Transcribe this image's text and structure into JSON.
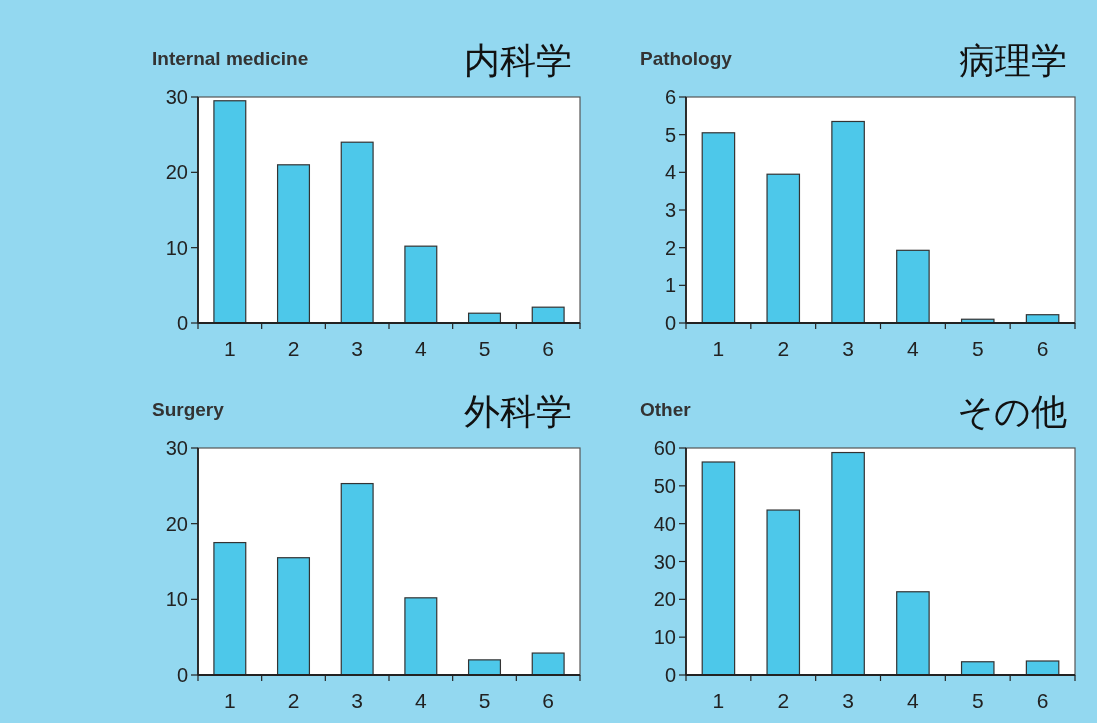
{
  "chart_data": [
    {
      "type": "bar",
      "title": "Internal medicine",
      "subtitle": "内科学",
      "categories": [
        "1",
        "2",
        "3",
        "4",
        "5",
        "6"
      ],
      "values": [
        29.5,
        21,
        24,
        10.2,
        1.3,
        2.1
      ],
      "color": "#4dc8ea",
      "ylim": [
        0,
        30
      ],
      "yticks": [
        0,
        10,
        20,
        30
      ]
    },
    {
      "type": "bar",
      "title": "Pathology",
      "subtitle": "病理学",
      "categories": [
        "1",
        "2",
        "3",
        "4",
        "5",
        "6"
      ],
      "values": [
        5.05,
        3.95,
        5.35,
        1.93,
        0.1,
        0.22
      ],
      "color": "#4dc8ea",
      "ylim": [
        0,
        6
      ],
      "yticks": [
        0,
        1,
        2,
        3,
        4,
        5,
        6
      ]
    },
    {
      "type": "bar",
      "title": "Surgery",
      "subtitle": "外科学",
      "categories": [
        "1",
        "2",
        "3",
        "4",
        "5",
        "6"
      ],
      "values": [
        17.5,
        15.5,
        25.3,
        10.2,
        2,
        2.9
      ],
      "color": "#4dc8ea",
      "ylim": [
        0,
        30
      ],
      "yticks": [
        0,
        10,
        20,
        30
      ]
    },
    {
      "type": "bar",
      "title": "Other",
      "subtitle": "その他",
      "categories": [
        "1",
        "2",
        "3",
        "4",
        "5",
        "6"
      ],
      "values": [
        56.3,
        43.6,
        58.8,
        22,
        3.5,
        3.7
      ],
      "color": "#4dc8ea",
      "ylim": [
        0,
        60
      ],
      "yticks": [
        0,
        10,
        20,
        30,
        40,
        50,
        60
      ]
    }
  ]
}
